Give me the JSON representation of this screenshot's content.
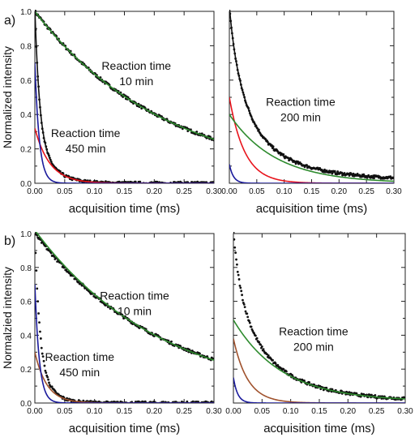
{
  "chart_data": [
    {
      "type": "line",
      "panel_label": "a)",
      "xlabel": "acquisition time (ms)",
      "ylabel": "Normalized intensity",
      "xlim": [
        0,
        0.3
      ],
      "ylim": [
        0,
        1.0
      ],
      "xticks": [
        "0.00",
        "0.05",
        "0.10",
        "0.15",
        "0.20",
        "0.25",
        "0.30"
      ],
      "yticks": [
        "0.0",
        "0.2",
        "0.4",
        "0.6",
        "0.8",
        "1.0"
      ],
      "annotations": [
        {
          "text": [
            "Reaction time",
            "10 min"
          ],
          "at": [
            0.17,
            0.66
          ]
        },
        {
          "text": [
            "Reaction time",
            "450 min"
          ],
          "at": [
            0.085,
            0.27
          ]
        }
      ],
      "series": [
        {
          "color": "#111111",
          "style": "dots",
          "components": [
            {
              "amp": 1.0,
              "tau": 0.22
            }
          ],
          "x_end": 0.3
        },
        {
          "color": "#2e8b2e",
          "style": "line",
          "components": [
            {
              "amp": 1.0,
              "tau": 0.22
            }
          ],
          "x_end": 0.3
        },
        {
          "color": "#111111",
          "style": "dots",
          "components": [
            {
              "amp": 0.7,
              "tau": 0.0075
            },
            {
              "amp": 0.32,
              "tau": 0.025
            }
          ],
          "x_end": 0.3
        },
        {
          "color": "#111111",
          "style": "line",
          "components": [
            {
              "amp": 0.7,
              "tau": 0.0075
            },
            {
              "amp": 0.32,
              "tau": 0.025
            }
          ],
          "x_end": 0.3
        },
        {
          "color": "#e8141c",
          "style": "line",
          "components": [
            {
              "amp": 0.32,
              "tau": 0.025
            }
          ],
          "x_end": 0.3
        },
        {
          "color": "#1a1a9c",
          "style": "line",
          "components": [
            {
              "amp": 0.7,
              "tau": 0.0075
            }
          ],
          "x_end": 0.3
        }
      ]
    },
    {
      "type": "line",
      "panel_label": "",
      "xlabel": "acquisition time (ms)",
      "ylabel": "",
      "xlim": [
        0,
        0.3
      ],
      "ylim": [
        0,
        1.0
      ],
      "xticks": [
        "0.00",
        "0.05",
        "0.10",
        "0.15",
        "0.20",
        "0.25",
        "0.30"
      ],
      "yticks": [],
      "annotations": [
        {
          "text": [
            "Reaction time",
            "200 min"
          ],
          "at": [
            0.13,
            0.45
          ]
        }
      ],
      "series": [
        {
          "color": "#111111",
          "style": "dots",
          "components": [
            {
              "amp": 0.5,
              "tau": 0.028
            },
            {
              "amp": 0.4,
              "tau": 0.085
            },
            {
              "amp": 0.11,
              "tau": 0.0075
            }
          ],
          "offset": 0.02,
          "x_end": 0.3
        },
        {
          "color": "#111111",
          "style": "line",
          "components": [
            {
              "amp": 0.5,
              "tau": 0.028
            },
            {
              "amp": 0.4,
              "tau": 0.085
            },
            {
              "amp": 0.11,
              "tau": 0.0075
            }
          ],
          "offset": 0.02,
          "x_end": 0.3
        },
        {
          "color": "#e8141c",
          "style": "line",
          "components": [
            {
              "amp": 0.5,
              "tau": 0.028
            }
          ],
          "x_end": 0.3
        },
        {
          "color": "#2e8b2e",
          "style": "line",
          "components": [
            {
              "amp": 0.4,
              "tau": 0.085
            }
          ],
          "x_end": 0.3
        },
        {
          "color": "#1a1a9c",
          "style": "line",
          "components": [
            {
              "amp": 0.11,
              "tau": 0.0075
            }
          ],
          "x_end": 0.3
        }
      ]
    },
    {
      "type": "line",
      "panel_label": "b)",
      "xlabel": "acquisition time (ms)",
      "ylabel": "Normalzied intensity",
      "xlim": [
        0,
        0.3
      ],
      "ylim": [
        0,
        1.0
      ],
      "xticks": [
        "0.00",
        "0.05",
        "0.10",
        "0.15",
        "0.20",
        "0.25",
        "0.30"
      ],
      "yticks": [
        "0.0",
        "0.2",
        "0.4",
        "0.6",
        "0.8",
        "1.0"
      ],
      "annotations": [
        {
          "text": [
            "Reaction time",
            "10 min"
          ],
          "at": [
            0.167,
            0.61
          ]
        },
        {
          "text": [
            "Reaction time",
            "450 min"
          ],
          "at": [
            0.075,
            0.25
          ]
        }
      ],
      "series": [
        {
          "color": "#111111",
          "style": "dots",
          "components": [
            {
              "amp": 1.0,
              "tau": 0.22
            }
          ],
          "x_end": 0.3
        },
        {
          "color": "#2e8b2e",
          "style": "line",
          "components": [
            {
              "amp": 1.02,
              "tau": 0.215
            }
          ],
          "x_end": 0.3
        },
        {
          "color": "#111111",
          "style": "dots",
          "components": [
            {
              "amp": 0.7,
              "tau": 0.0075
            },
            {
              "amp": 0.31,
              "tau": 0.02
            }
          ],
          "x_end": 0.3
        },
        {
          "color": "#a0522d",
          "style": "line",
          "components": [
            {
              "amp": 0.3,
              "tau": 0.02
            }
          ],
          "x_end": 0.3
        },
        {
          "color": "#1a1a9c",
          "style": "line",
          "components": [
            {
              "amp": 0.7,
              "tau": 0.0075
            }
          ],
          "x_end": 0.3
        }
      ]
    },
    {
      "type": "line",
      "panel_label": "",
      "xlabel": "acquisition time (ms)",
      "ylabel": "",
      "xlim": [
        0,
        0.3
      ],
      "ylim": [
        0,
        1.0
      ],
      "xticks": [
        "0.00",
        "0.05",
        "0.10",
        "0.15",
        "0.20",
        "0.25",
        "0.30"
      ],
      "yticks": [],
      "annotations": [
        {
          "text": [
            "Reaction time",
            "200 min"
          ],
          "at": [
            0.14,
            0.4
          ]
        }
      ],
      "series": [
        {
          "color": "#111111",
          "style": "dots",
          "components": [
            {
              "amp": 0.47,
              "tau": 0.085
            },
            {
              "amp": 0.38,
              "tau": 0.025
            },
            {
              "amp": 0.15,
              "tau": 0.0075
            }
          ],
          "offset": 0.012,
          "x_end": 0.3
        },
        {
          "color": "#2e8b2e",
          "style": "line",
          "components": [
            {
              "amp": 0.48,
              "tau": 0.085
            }
          ],
          "offset": 0.01,
          "x_end": 0.3
        },
        {
          "color": "#a0522d",
          "style": "line",
          "components": [
            {
              "amp": 0.38,
              "tau": 0.025
            }
          ],
          "x_end": 0.3
        },
        {
          "color": "#1a1a9c",
          "style": "line",
          "components": [
            {
              "amp": 0.15,
              "tau": 0.0075
            }
          ],
          "x_end": 0.3
        }
      ]
    }
  ]
}
